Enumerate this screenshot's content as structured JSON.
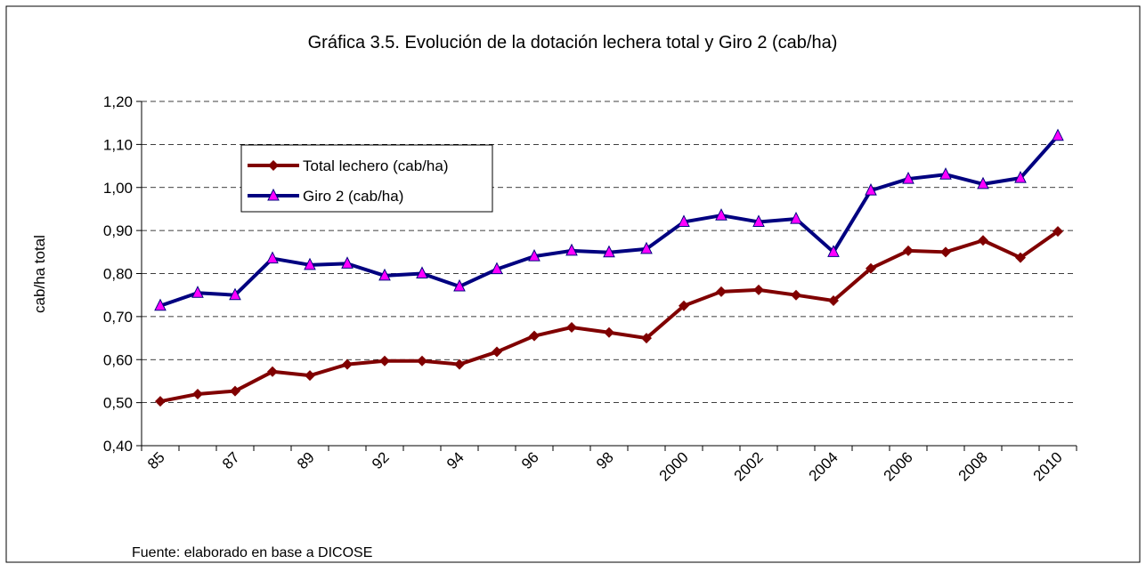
{
  "chart_data": {
    "type": "line",
    "title": "Gráfica 3.5. Evolución de la dotación lechera total y Giro 2 (cab/ha)",
    "y_label": "cab/ha total",
    "source": "Fuente: elaborado en base a DICOSE",
    "categories": [
      "85",
      null,
      "87",
      null,
      "89",
      null,
      "92",
      null,
      "94",
      null,
      "96",
      null,
      "98",
      null,
      "2000",
      null,
      "2002",
      null,
      "2004",
      null,
      "2006",
      null,
      "2008",
      null,
      "2010"
    ],
    "series": [
      {
        "name": "Total lechero (cab/ha)",
        "color": "#800000",
        "marker": "diamond",
        "values": [
          0.503,
          0.52,
          0.527,
          0.572,
          0.563,
          0.589,
          0.597,
          0.597,
          0.589,
          0.618,
          0.655,
          0.675,
          0.663,
          0.65,
          0.725,
          0.758,
          0.762,
          0.75,
          0.737,
          0.812,
          0.853,
          0.85,
          0.877,
          0.837,
          0.898
        ]
      },
      {
        "name": "Giro 2 (cab/ha)",
        "color": "#000080",
        "marker": "triangle",
        "marker_color": "#ff00ff",
        "values": [
          0.725,
          0.755,
          0.75,
          0.835,
          0.82,
          0.823,
          0.795,
          0.8,
          0.77,
          0.81,
          0.84,
          0.853,
          0.849,
          0.857,
          0.92,
          0.935,
          0.92,
          0.927,
          0.85,
          0.993,
          1.02,
          1.03,
          1.008,
          1.022,
          1.12
        ]
      }
    ],
    "ylim": [
      0.4,
      1.2
    ],
    "yticks": [
      {
        "value": 0.4,
        "label": "0,40"
      },
      {
        "value": 0.5,
        "label": "0,50"
      },
      {
        "value": 0.6,
        "label": "0,60"
      },
      {
        "value": 0.7,
        "label": "0,70"
      },
      {
        "value": 0.8,
        "label": "0,80"
      },
      {
        "value": 0.9,
        "label": "0,90"
      },
      {
        "value": 1.0,
        "label": "1,00"
      },
      {
        "value": 1.1,
        "label": "1,10"
      },
      {
        "value": 1.2,
        "label": "1,20"
      }
    ],
    "grid": true
  }
}
